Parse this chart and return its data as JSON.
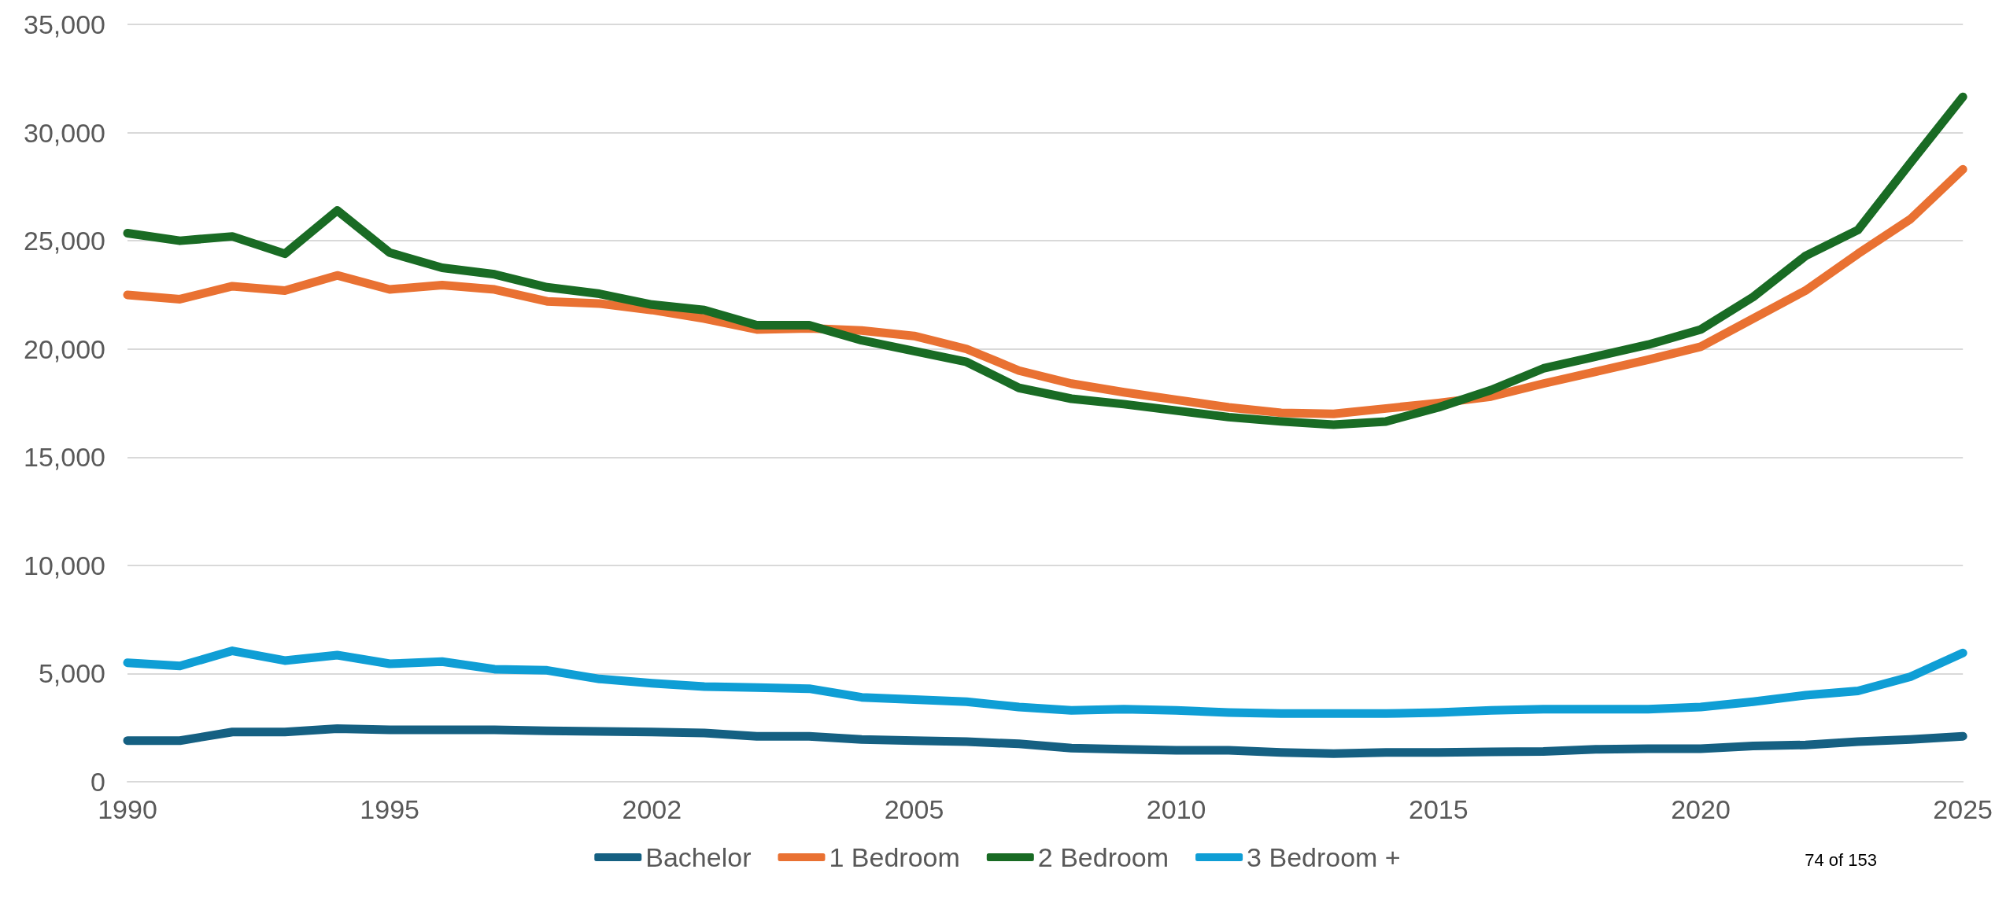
{
  "chart_data": {
    "type": "line",
    "categories": [
      "1990",
      null,
      null,
      null,
      null,
      "1995",
      null,
      null,
      null,
      null,
      "2002",
      null,
      null,
      null,
      null,
      "2005",
      null,
      null,
      null,
      null,
      "2010",
      null,
      null,
      null,
      null,
      "2015",
      null,
      null,
      null,
      null,
      "2020",
      null,
      null,
      null,
      null,
      "2025"
    ],
    "series": [
      {
        "name": "Bachelor",
        "color": "#156082",
        "values": [
          1900,
          1900,
          2300,
          2300,
          2450,
          2400,
          2400,
          2400,
          2350,
          2330,
          2300,
          2250,
          2100,
          2100,
          1950,
          1900,
          1850,
          1750,
          1550,
          1500,
          1450,
          1450,
          1350,
          1300,
          1350,
          1350,
          1380,
          1400,
          1500,
          1530,
          1530,
          1650,
          1700,
          1850,
          1950,
          2100
        ]
      },
      {
        "name": "1 Bedroom",
        "color": "#e97132",
        "values": [
          22500,
          22300,
          22900,
          22700,
          23400,
          22750,
          22950,
          22750,
          22200,
          22100,
          21800,
          21400,
          20900,
          20950,
          20850,
          20600,
          20000,
          19000,
          18400,
          18000,
          17650,
          17300,
          17050,
          17000,
          17250,
          17500,
          17800,
          18400,
          18950,
          19500,
          20100,
          21400,
          22700,
          24400,
          26000,
          28300
        ]
      },
      {
        "name": "2 Bedroom",
        "color": "#196b24",
        "values": [
          25350,
          25000,
          25200,
          24400,
          26400,
          24450,
          23750,
          23450,
          22850,
          22550,
          22050,
          21800,
          21100,
          21100,
          20400,
          19900,
          19400,
          18200,
          17700,
          17450,
          17150,
          16850,
          16650,
          16500,
          16650,
          17300,
          18100,
          19100,
          19650,
          20200,
          20900,
          22400,
          24300,
          25500,
          28600,
          31650
        ]
      },
      {
        "name": "3 Bedroom +",
        "color": "#0f9ed5",
        "values": [
          5500,
          5350,
          6050,
          5600,
          5850,
          5450,
          5550,
          5200,
          5150,
          4750,
          4550,
          4400,
          4350,
          4300,
          3900,
          3800,
          3700,
          3450,
          3300,
          3350,
          3300,
          3200,
          3150,
          3150,
          3150,
          3200,
          3300,
          3350,
          3350,
          3350,
          3450,
          3700,
          4000,
          4200,
          4850,
          5950
        ]
      }
    ],
    "ylim": [
      0,
      35000
    ],
    "yticks": [
      0,
      {
        "value": 5000,
        "label": "5,000"
      },
      {
        "value": 10000,
        "label": "10,000"
      },
      {
        "value": 15000,
        "label": "15,000"
      },
      {
        "value": 20000,
        "label": "20,000"
      },
      {
        "value": 25000,
        "label": "25,000"
      },
      {
        "value": 30000,
        "label": "30,000"
      },
      {
        "value": 35000,
        "label": "35,000"
      }
    ],
    "grid": "y",
    "legend": "bottom",
    "marker": "none",
    "line_style": "solid",
    "annotations": [
      "74 of 153"
    ]
  }
}
